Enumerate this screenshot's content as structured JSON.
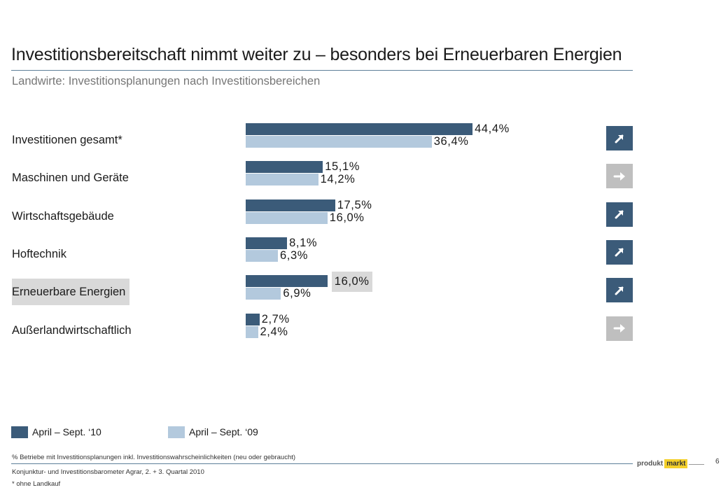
{
  "header": {
    "title": "Investitionsbereitschaft nimmt weiter zu – besonders bei Erneuerbaren Energien",
    "subtitle": "Landwirte: Investitionsplanungen nach Investitionsbereichen"
  },
  "chart_data": {
    "type": "bar",
    "orientation": "horizontal",
    "categories": [
      "Investitionen gesamt*",
      "Maschinen und Geräte",
      "Wirtschaftsgebäude",
      "Hoftechnik",
      "Erneuerbare Energien",
      "Außerlandwirtschaftlich"
    ],
    "series": [
      {
        "name": "April – Sept. ‘10",
        "values": [
          44.4,
          15.1,
          17.5,
          8.1,
          16.0,
          2.7
        ],
        "labels": [
          "44,4%",
          "15,1%",
          "17,5%",
          "8,1%",
          "16,0%",
          "2,7%"
        ],
        "color": "#3b5b79"
      },
      {
        "name": "April – Sept. ‘09",
        "values": [
          36.4,
          14.2,
          16.0,
          6.3,
          6.9,
          2.4
        ],
        "labels": [
          "36,4%",
          "14,2%",
          "16,0%",
          "6,3%",
          "6,9%",
          "2,4%"
        ],
        "color": "#b3c9dd"
      }
    ],
    "highlight_category": "Erneuerbare Energien",
    "trend_icons": [
      "arrow-up-right",
      "arrow-right",
      "arrow-up-right",
      "arrow-up-right",
      "arrow-up-right",
      "arrow-right"
    ],
    "legend_position": "bottom-left",
    "xlim": [
      0,
      50
    ],
    "grid": false
  },
  "footer": {
    "note1": "% Betriebe mit Investitionsplanungen inkl. Investitionswahrscheinlichkeiten (neu oder gebraucht)",
    "source": "Konjunktur- und Investitionsbarometer Agrar, 2. + 3. Quartal 2010",
    "note2": "* ohne Landkauf",
    "page": "6",
    "logo_part1": "produkt",
    "logo_part2": "markt"
  },
  "colors": {
    "accent": "#3b5b79",
    "light": "#b3c9dd",
    "flat": "#bfbfbf",
    "logo": "#f4d02a"
  }
}
